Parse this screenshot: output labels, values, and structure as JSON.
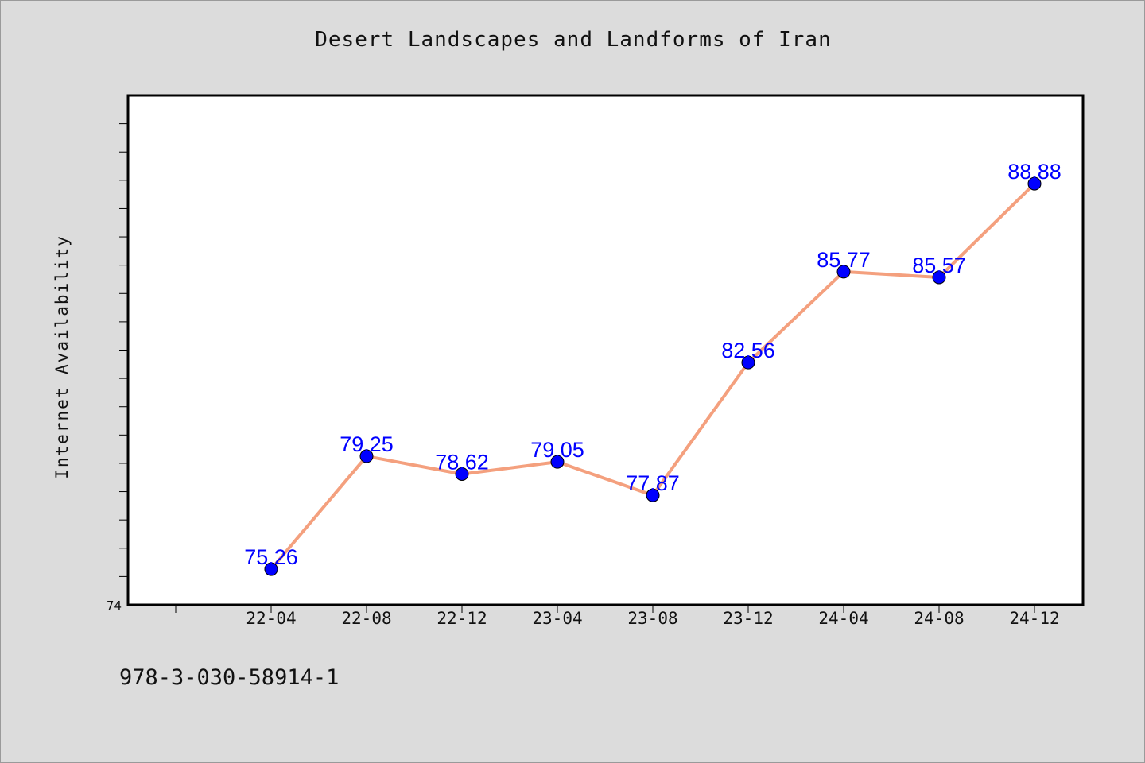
{
  "title": "Desert Landscapes and Landforms of Iran",
  "footnote": "978-3-030-58914-1",
  "colors": {
    "background": "#dcdcdc",
    "plot_background": "#ffffff",
    "line": "#f4a07e",
    "marker": "#0000ff",
    "data_label": "#0000ff"
  },
  "chart_data": {
    "type": "line",
    "title": "Desert Landscapes and Landforms of Iran",
    "xlabel": "",
    "ylabel": "Internet Availability",
    "categories": [
      "22-04",
      "22-08",
      "22-12",
      "23-04",
      "23-08",
      "23-12",
      "24-04",
      "24-08",
      "24-12"
    ],
    "series": [
      {
        "values": [
          75.26,
          79.25,
          78.62,
          79.05,
          77.87,
          82.56,
          85.77,
          85.57,
          88.88
        ]
      }
    ],
    "data_labels": [
      "75.26",
      "79.25",
      "78.62",
      "79.05",
      "77.87",
      "82.56",
      "85.77",
      "85.57",
      "88.88"
    ],
    "y_tick_labels": [
      "74"
    ],
    "ylim": [
      74,
      92
    ],
    "grid": false,
    "legend": "none"
  }
}
